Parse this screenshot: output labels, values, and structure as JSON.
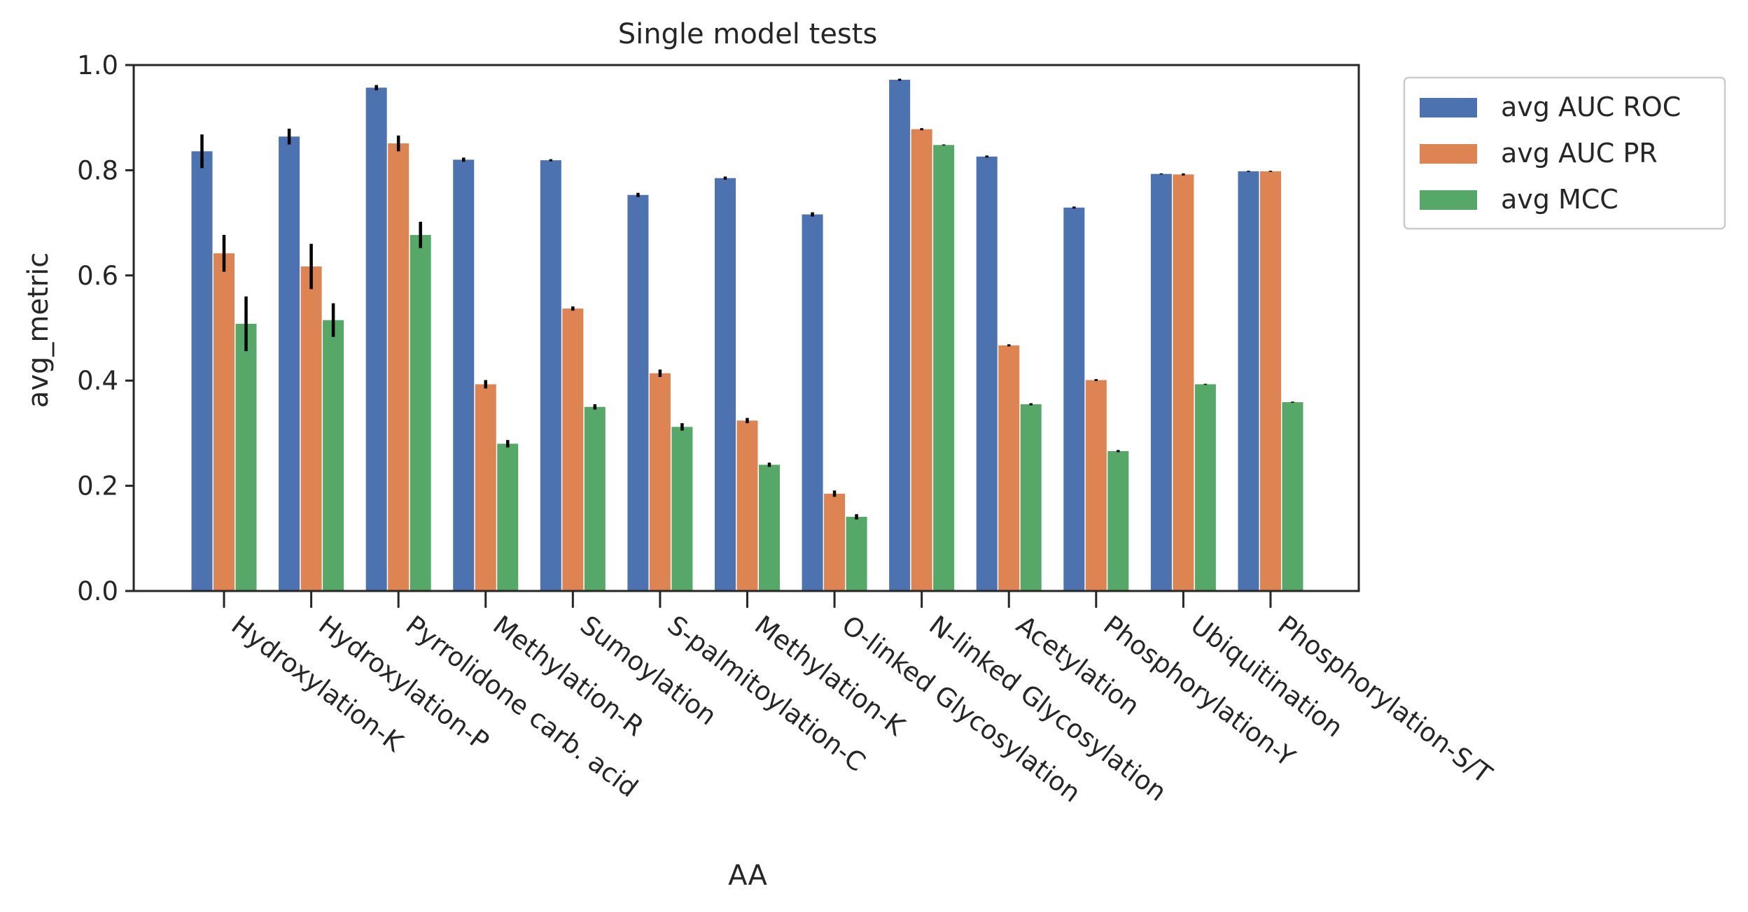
{
  "chart_data": {
    "type": "bar",
    "title": "Single model tests",
    "xlabel": "AA",
    "ylabel": "avg_metric",
    "ylim": [
      0,
      1.0
    ],
    "yticks": [
      "0.0",
      "0.2",
      "0.4",
      "0.6",
      "0.8",
      "1.0"
    ],
    "categories": [
      "Hydroxylation-K",
      "Hydroxylation-P",
      "Pyrrolidone carb. acid",
      "Methylation-R",
      "Sumoylation",
      "S-palmitoylation-C",
      "Methylation-K",
      "O-linked Glycosylation",
      "N-linked Glycosylation",
      "Acetylation",
      "Phosphorylation-Y",
      "Ubiquitination",
      "Phosphorylation-S/T"
    ],
    "series": [
      {
        "name": "avg AUC ROC",
        "color": "#4c72b0",
        "values": [
          0.836,
          0.864,
          0.957,
          0.82,
          0.819,
          0.753,
          0.785,
          0.716,
          0.972,
          0.826,
          0.729,
          0.793,
          0.798
        ],
        "errors": [
          0.032,
          0.015,
          0.005,
          0.004,
          0.002,
          0.004,
          0.003,
          0.004,
          0.002,
          0.002,
          0.002,
          0.001,
          0.001
        ]
      },
      {
        "name": "avg AUC PR",
        "color": "#dd8452",
        "values": [
          0.642,
          0.617,
          0.851,
          0.393,
          0.537,
          0.414,
          0.324,
          0.185,
          0.878,
          0.467,
          0.401,
          0.792,
          0.798
        ],
        "errors": [
          0.035,
          0.043,
          0.015,
          0.008,
          0.004,
          0.007,
          0.005,
          0.006,
          0.002,
          0.002,
          0.002,
          0.002,
          0.001
        ]
      },
      {
        "name": "avg MCC",
        "color": "#55a868",
        "values": [
          0.508,
          0.515,
          0.677,
          0.28,
          0.35,
          0.312,
          0.24,
          0.141,
          0.848,
          0.355,
          0.266,
          0.393,
          0.359
        ],
        "errors": [
          0.052,
          0.032,
          0.025,
          0.007,
          0.005,
          0.007,
          0.004,
          0.005,
          0.001,
          0.002,
          0.002,
          0.001,
          0.001
        ]
      }
    ],
    "legend": "upper-right-outside",
    "grid": false
  }
}
